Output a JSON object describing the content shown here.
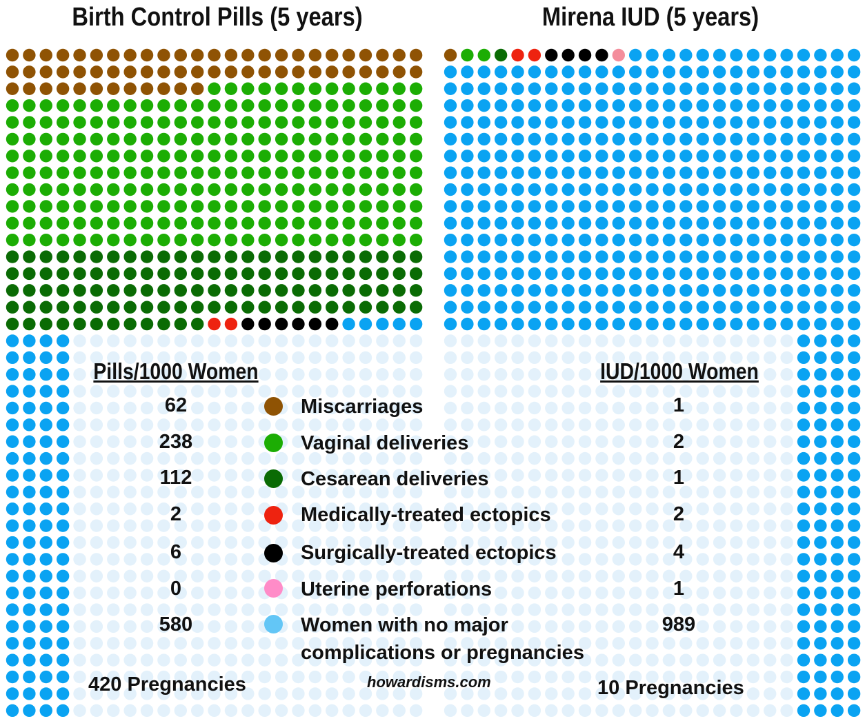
{
  "colors": {
    "miscarriage": "#8f5304",
    "vaginal": "#1cad04",
    "cesarean": "#0a6b04",
    "medical_ectopic": "#ee2310",
    "surgical_ectopic": "#000000",
    "perforation": "#f48e9c",
    "none": "#0aa3f2",
    "none_faded": "#e3f1fb",
    "legend_perforation": "#ff8cc8",
    "legend_none": "#63c6f6"
  },
  "chart_data": [
    {
      "type": "waffle",
      "title": "Birth Control Pills (5 years)",
      "header": "Pills/1000 Women",
      "categories": [
        "Miscarriages",
        "Vaginal deliveries",
        "Cesarean deliveries",
        "Medically-treated ectopics",
        "Surgically-treated ectopics",
        "Uterine perforations",
        "Women with no major complications or pregnancies"
      ],
      "values": [
        62,
        238,
        112,
        2,
        6,
        0,
        580
      ],
      "total_label": "420 Pregnancies"
    },
    {
      "type": "waffle",
      "title": "Mirena IUD (5 years)",
      "header": "IUD/1000 Women",
      "categories": [
        "Miscarriages",
        "Vaginal deliveries",
        "Cesarean deliveries",
        "Medically-treated ectopics",
        "Surgically-treated ectopics",
        "Uterine perforations",
        "Women with no major complications or pregnancies"
      ],
      "values": [
        1,
        2,
        1,
        2,
        4,
        1,
        989
      ],
      "total_label": "10 Pregnancies"
    }
  ],
  "legend": [
    {
      "key": "miscarriage",
      "label": "Miscarriages"
    },
    {
      "key": "vaginal",
      "label": "Vaginal deliveries"
    },
    {
      "key": "cesarean",
      "label": "Cesarean deliveries"
    },
    {
      "key": "medical_ectopic",
      "label": "Medically-treated ectopics"
    },
    {
      "key": "surgical_ectopic",
      "label": "Surgically-treated ectopics"
    },
    {
      "key": "perforation",
      "label": "Uterine perforations"
    },
    {
      "key": "none",
      "label": "Women with no major complications or pregnancies"
    }
  ],
  "credit": "howardisms.com"
}
